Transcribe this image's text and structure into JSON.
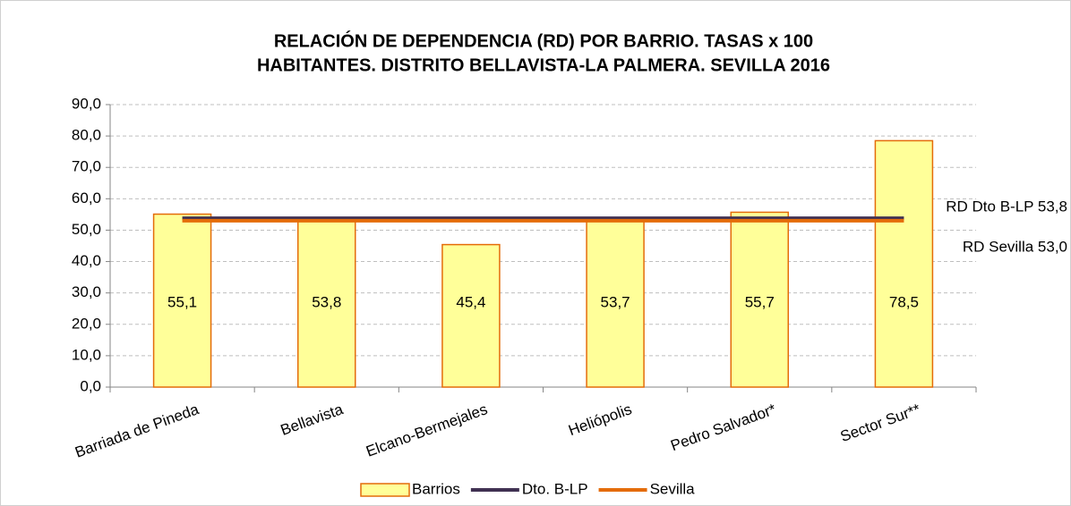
{
  "chart_data": {
    "type": "bar",
    "title": [
      "RELACIÓN DE DEPENDENCIA (RD) POR BARRIO. TASAS x 100",
      "HABITANTES. DISTRITO BELLAVISTA-LA PALMERA. SEVILLA 2016"
    ],
    "categories": [
      "Barriada de Pineda",
      "Bellavista",
      "Elcano-Bermejales",
      "Heliópolis",
      "Pedro Salvador*",
      "Sector Sur**"
    ],
    "series": [
      {
        "name": "Barrios",
        "type": "bar",
        "color": "#ffff99",
        "edge_color": "#e46c0a",
        "values": [
          55.1,
          53.8,
          45.4,
          53.7,
          55.7,
          78.5
        ],
        "value_labels": [
          "55,1",
          "53,8",
          "45,4",
          "53,7",
          "55,7",
          "78,5"
        ]
      },
      {
        "name": "Dto. B-LP",
        "type": "line",
        "color": "#403152",
        "values": [
          53.8,
          53.8,
          53.8,
          53.8,
          53.8,
          53.8
        ]
      },
      {
        "name": "Sevilla",
        "type": "line",
        "color": "#e46c0a",
        "values": [
          53.0,
          53.0,
          53.0,
          53.0,
          53.0,
          53.0
        ]
      }
    ],
    "annotations": [
      "RD Dto B-LP 53,8",
      "RD Sevilla 53,0"
    ],
    "ylim": [
      0,
      90
    ],
    "yticks": [
      {
        "value": 0,
        "label": "0,0"
      },
      {
        "value": 10,
        "label": "10,0"
      },
      {
        "value": 20,
        "label": "20,0"
      },
      {
        "value": 30,
        "label": "30,0"
      },
      {
        "value": 40,
        "label": "40,0"
      },
      {
        "value": 50,
        "label": "50,0"
      },
      {
        "value": 60,
        "label": "60,0"
      },
      {
        "value": 70,
        "label": "70,0"
      },
      {
        "value": 80,
        "label": "80,0"
      },
      {
        "value": 90,
        "label": "90,0"
      }
    ],
    "grid": true,
    "legend": "bottom"
  }
}
